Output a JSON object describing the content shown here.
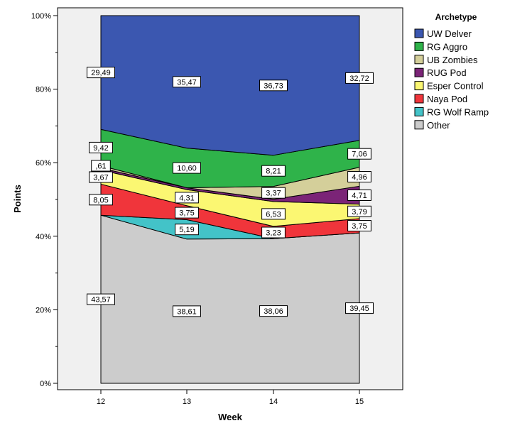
{
  "chart_data": {
    "type": "area",
    "stacked": "percent",
    "xlabel": "Week",
    "ylabel": "Points",
    "x": [
      "12",
      "13",
      "14",
      "15"
    ],
    "ylim": [
      0,
      100
    ],
    "y_ticks": [
      "0%",
      "20%",
      "40%",
      "60%",
      "80%",
      "100%"
    ],
    "legend_title": "Archetype",
    "legend_position": "right",
    "grid": false,
    "series": [
      {
        "name": "UW Delver",
        "color": "#3b57b0",
        "values": [
          29.49,
          35.47,
          36.73,
          32.72
        ],
        "labels": [
          "29,49",
          "35,47",
          "36,73",
          "32,72"
        ]
      },
      {
        "name": "RG Aggro",
        "color": "#2fb34a",
        "values": [
          9.42,
          10.6,
          8.21,
          7.06
        ],
        "labels": [
          "9,42",
          "10,60",
          "8,21",
          "7,06"
        ]
      },
      {
        "name": "UB Zombies",
        "color": "#d4cf9a",
        "values": [
          0.61,
          0,
          3.37,
          4.96
        ],
        "labels": [
          ",61",
          "",
          "3,37",
          "4,96"
        ]
      },
      {
        "name": "RUG Pod",
        "color": "#7b2477",
        "values": [
          0.5,
          0.5,
          0.6,
          4.71
        ],
        "labels": [
          "",
          "",
          "",
          "4,71"
        ]
      },
      {
        "name": "Esper Control",
        "color": "#fbf772",
        "values": [
          3.67,
          4.31,
          6.53,
          3.79
        ],
        "labels": [
          "3,67",
          "4,31",
          "6,53",
          "3,79"
        ]
      },
      {
        "name": "Naya Pod",
        "color": "#f0353b",
        "values": [
          8.05,
          3.75,
          3.23,
          3.75
        ],
        "labels": [
          "8,05",
          "3,75",
          "3,23",
          "3,75"
        ]
      },
      {
        "name": "RG Wolf Ramp",
        "color": "#43c3c8",
        "values": [
          0,
          5.19,
          0,
          0
        ],
        "labels": [
          "",
          "5,19",
          "",
          ""
        ]
      },
      {
        "name": "Other",
        "color": "#cccccc",
        "values": [
          43.57,
          38.61,
          38.06,
          39.45
        ],
        "labels": [
          "43,57",
          "38,61",
          "38,06",
          "39,45"
        ]
      }
    ]
  }
}
